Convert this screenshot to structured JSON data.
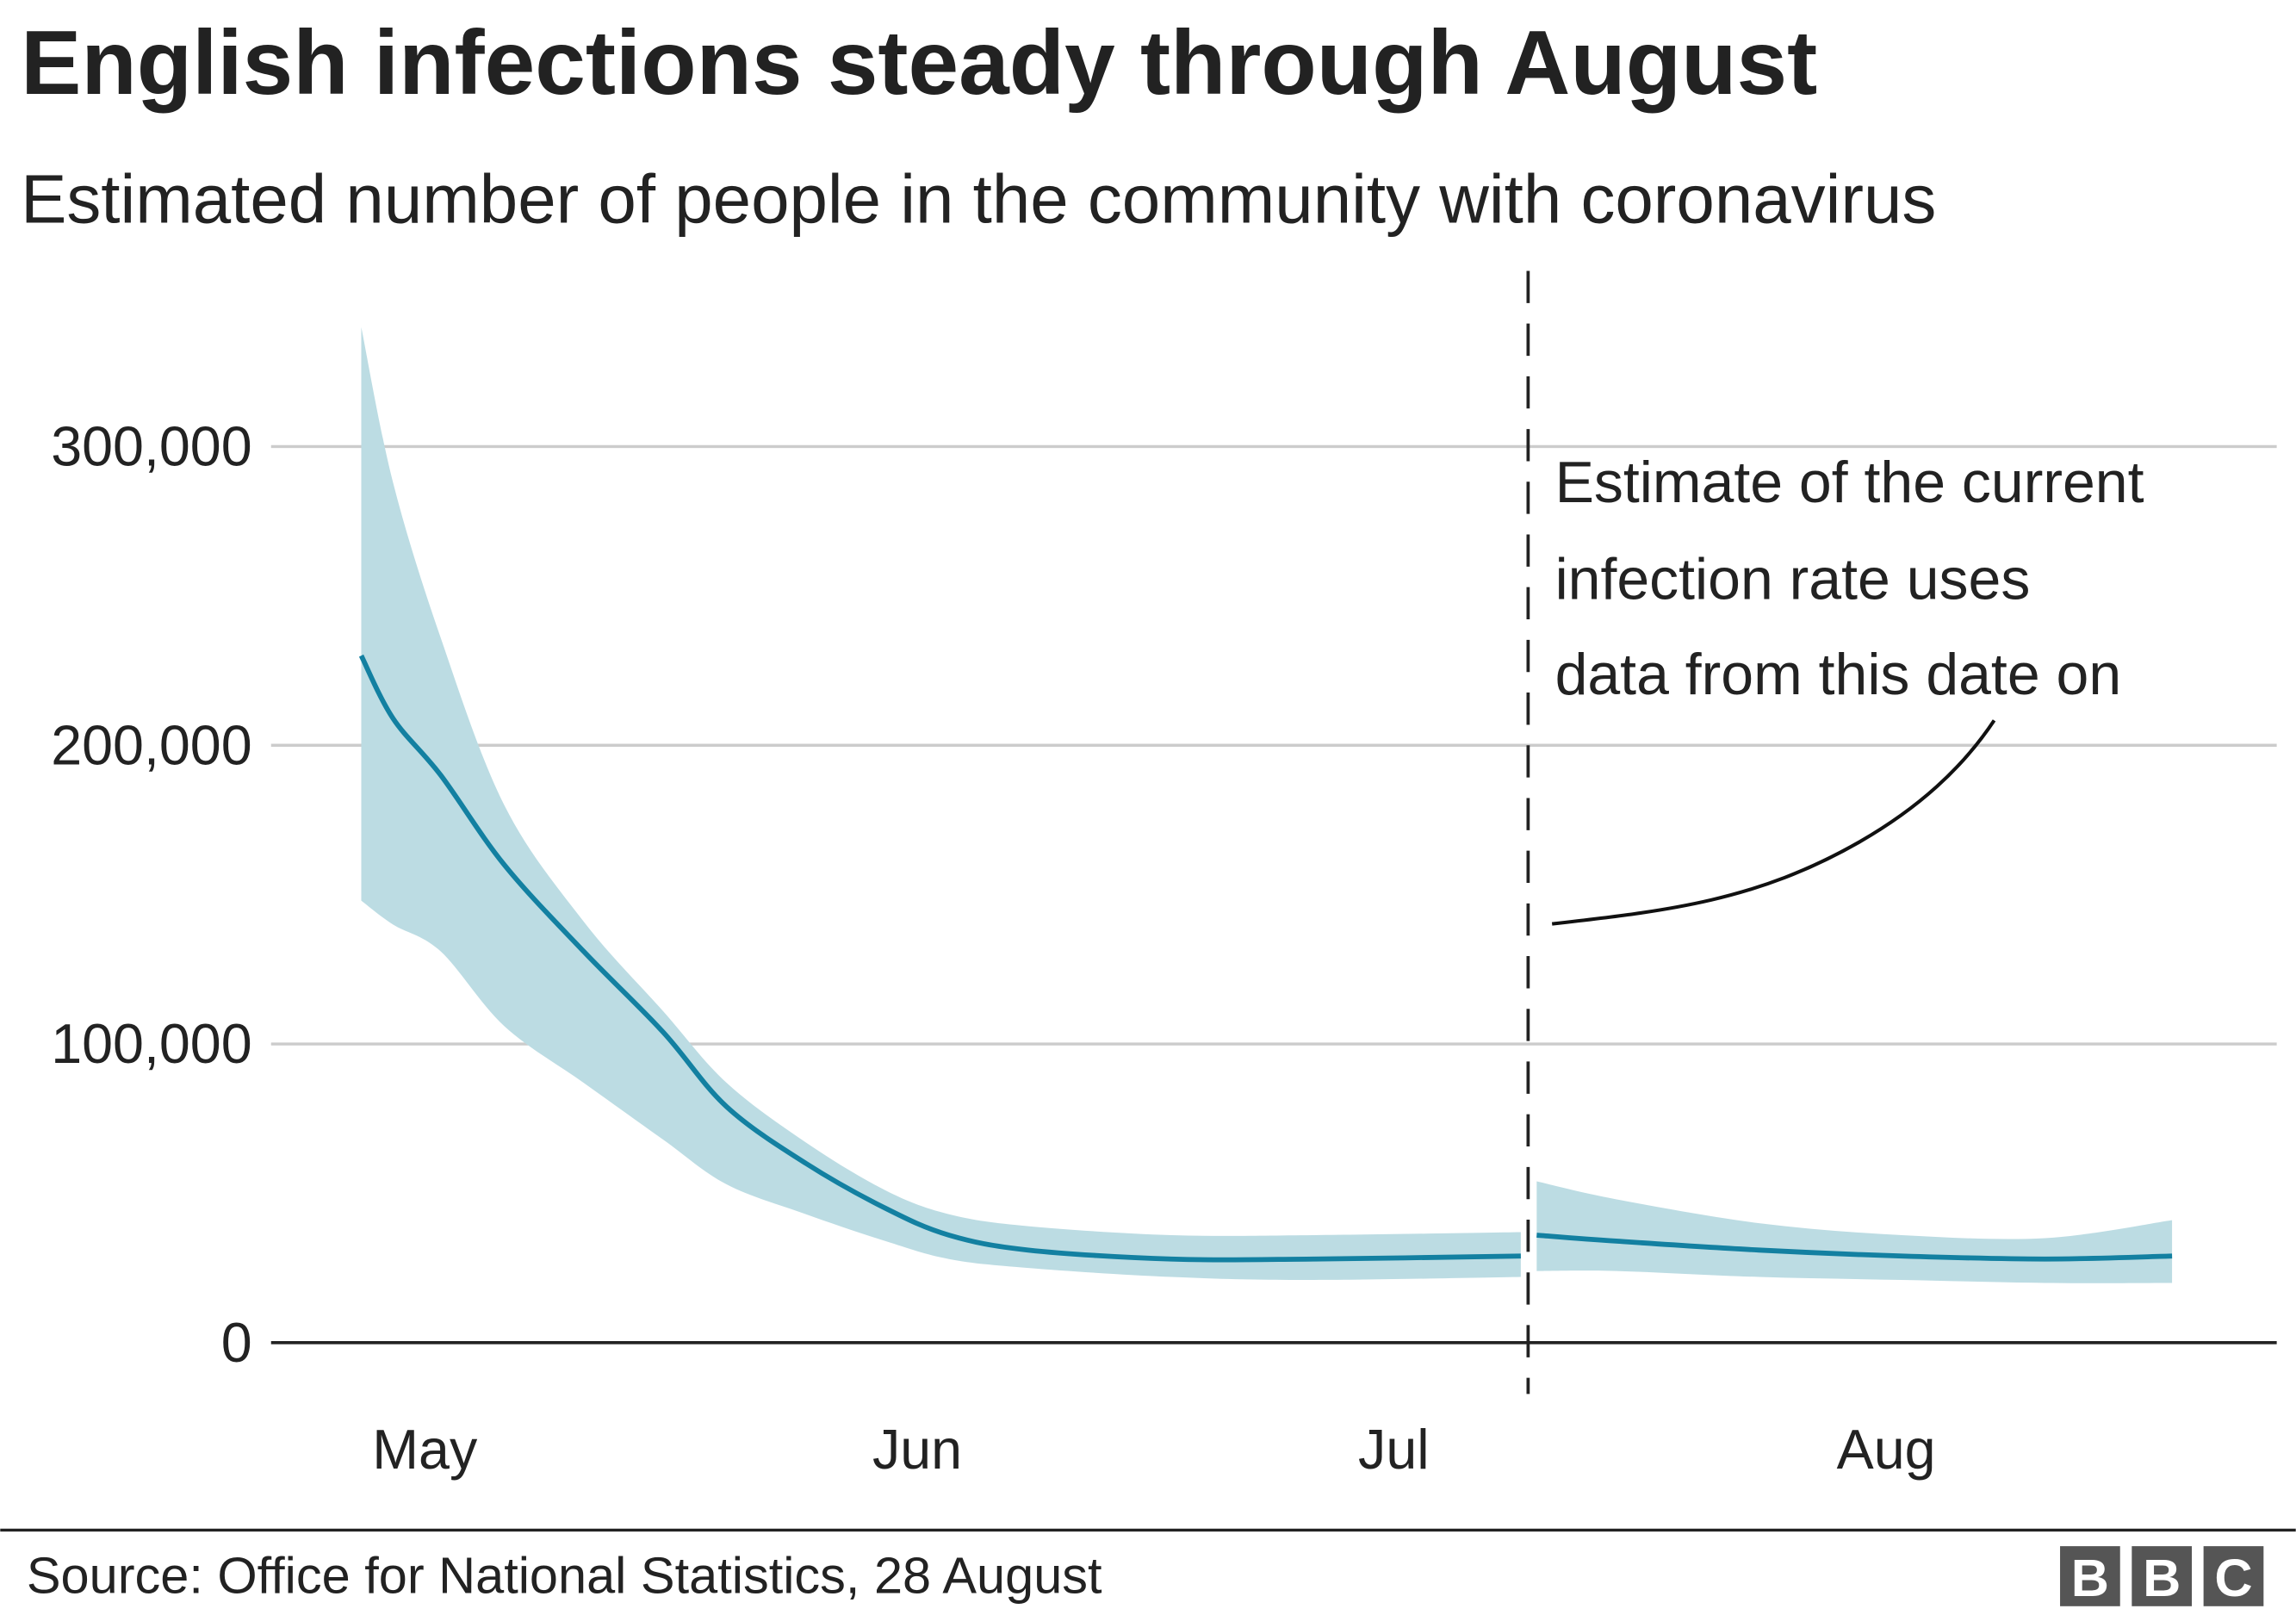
{
  "chart_data": {
    "type": "area",
    "title": "English infections steady through August",
    "subtitle": "Estimated number of people in the community with coronavirus",
    "xlabel": "",
    "ylabel": "",
    "ylim": [
      0,
      340000
    ],
    "y_ticks": [
      0,
      100000,
      200000,
      300000
    ],
    "y_tick_labels": [
      "0",
      "100,000",
      "200,000",
      "300,000"
    ],
    "x_ticks": [
      {
        "date": "May 1",
        "label": "May"
      },
      {
        "date": "Jun 1",
        "label": "Jun"
      },
      {
        "date": "Jul 1",
        "label": "Jul"
      },
      {
        "date": "Aug 1",
        "label": "Aug"
      }
    ],
    "grid": true,
    "colors": {
      "line": "#1380a1",
      "band": "#bcdce3",
      "grid": "#cccccc",
      "axis": "#222222"
    },
    "segments": [
      {
        "dates": [
          "Apr 27",
          "Apr 29",
          "May 2",
          "May 6",
          "May 11",
          "May 16",
          "May 20",
          "May 25",
          "May 30",
          "Jun 3",
          "Jun 8",
          "Jun 17",
          "Jun 26",
          "Jul 9"
        ],
        "estimate": [
          230000,
          209000,
          190000,
          160000,
          131000,
          104000,
          79000,
          60000,
          45000,
          36000,
          31000,
          28000,
          28000,
          29000
        ],
        "upper": [
          340000,
          288000,
          236000,
          180000,
          141000,
          111000,
          87000,
          67000,
          51000,
          43000,
          39000,
          36000,
          36000,
          37000
        ],
        "lower": [
          148000,
          140000,
          131000,
          106000,
          87000,
          68000,
          53000,
          43000,
          34000,
          28000,
          25000,
          22000,
          21000,
          22000
        ]
      },
      {
        "dates": [
          "Jul 10",
          "Jul 15",
          "Jul 24",
          "Aug 2",
          "Aug 11",
          "Aug 19"
        ],
        "estimate": [
          36000,
          34000,
          31000,
          29000,
          28000,
          29000
        ],
        "upper": [
          54000,
          48000,
          40000,
          36000,
          35000,
          41000
        ],
        "lower": [
          24000,
          24000,
          22000,
          21000,
          20000,
          20000
        ]
      }
    ],
    "annotation": {
      "date": "Jul 9",
      "lines": [
        "Estimate of the current",
        "infection rate uses",
        "data from this date on"
      ]
    }
  },
  "footer": {
    "source": "Source: Office for National Statistics, 28 August",
    "logo": "BBC"
  }
}
